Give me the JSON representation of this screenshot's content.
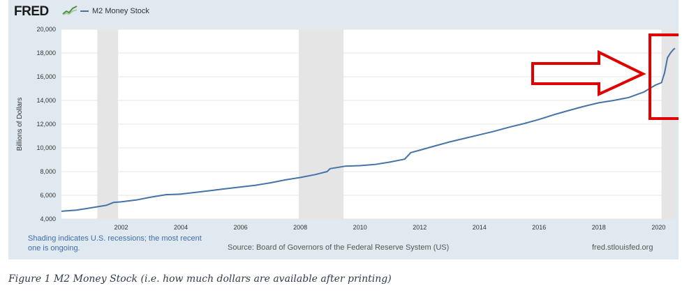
{
  "header": {
    "logo_text": "FRED",
    "series_legend": "M2 Money Stock"
  },
  "chart_data": {
    "type": "line",
    "title": "",
    "xlabel": "",
    "ylabel": "Billions of Dollars",
    "xlim": [
      2000.0,
      2020.6
    ],
    "ylim": [
      4000,
      20000
    ],
    "y_ticks": [
      4000,
      6000,
      8000,
      10000,
      12000,
      14000,
      16000,
      18000,
      20000
    ],
    "y_tick_labels": [
      "4,000",
      "6,000",
      "8,000",
      "10,000",
      "12,000",
      "14,000",
      "16,000",
      "18,000",
      "20,000"
    ],
    "x_ticks": [
      2002,
      2004,
      2006,
      2008,
      2010,
      2012,
      2014,
      2016,
      2018,
      2020
    ],
    "recessions": [
      [
        2001.2,
        2001.9
      ],
      [
        2007.95,
        2009.45
      ],
      [
        2020.1,
        2020.6
      ]
    ],
    "line_color": "#4572a7",
    "series": [
      {
        "name": "M2 Money Stock",
        "x": [
          2000.0,
          2000.5,
          2001.0,
          2001.5,
          2001.75,
          2002.0,
          2002.5,
          2003.0,
          2003.5,
          2004.0,
          2004.5,
          2005.0,
          2005.5,
          2006.0,
          2006.5,
          2007.0,
          2007.5,
          2008.0,
          2008.5,
          2008.9,
          2009.0,
          2009.5,
          2010.0,
          2010.5,
          2011.0,
          2011.5,
          2011.7,
          2012.0,
          2012.5,
          2013.0,
          2013.5,
          2014.0,
          2014.5,
          2015.0,
          2015.5,
          2016.0,
          2016.5,
          2017.0,
          2017.5,
          2018.0,
          2018.5,
          2019.0,
          2019.5,
          2019.9,
          2020.1,
          2020.2,
          2020.3,
          2020.4,
          2020.5,
          2020.55
        ],
        "values": [
          4650,
          4750,
          4950,
          5150,
          5400,
          5450,
          5600,
          5850,
          6050,
          6100,
          6250,
          6400,
          6550,
          6700,
          6850,
          7050,
          7300,
          7500,
          7750,
          8000,
          8250,
          8450,
          8500,
          8600,
          8800,
          9050,
          9600,
          9800,
          10150,
          10500,
          10800,
          11100,
          11400,
          11750,
          12050,
          12400,
          12800,
          13150,
          13500,
          13800,
          14000,
          14250,
          14700,
          15300,
          15500,
          16300,
          17600,
          18000,
          18300,
          18400
        ]
      }
    ]
  },
  "notes": {
    "recession_note": "Shading indicates U.S. recessions; the most recent one is ongoing.",
    "source": "Source: Board of Governors of the Federal Reserve System (US)",
    "site": "fred.stlouisfed.org"
  },
  "annotation": {
    "color": "#e00000"
  },
  "caption": "Figure 1 M2 Money Stock (i.e. how much dollars are available after printing)"
}
